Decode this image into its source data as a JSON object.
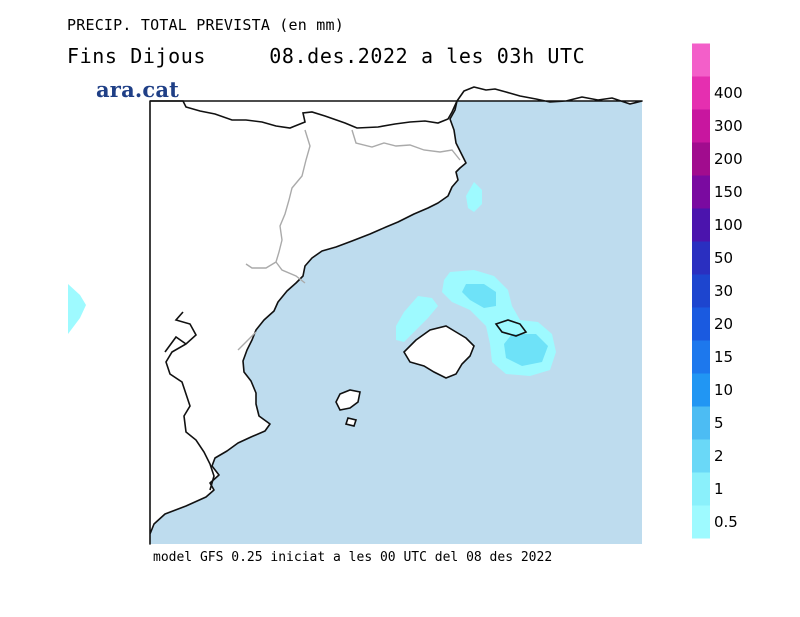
{
  "header": {
    "line1": "PRECIP. TOTAL PREVISTA (en mm)",
    "line2": "Fins Dijous     08.des.2022 a les 03h UTC",
    "brand": "ara.cat"
  },
  "footer": {
    "model_line": "model GFS 0.25 iniciat a les 00 UTC del 08 des 2022"
  },
  "legend": {
    "levels": [
      {
        "label": "0.5",
        "color": "#9efaff"
      },
      {
        "label": "1",
        "color": "#8af0fb"
      },
      {
        "label": "2",
        "color": "#6ad8f7"
      },
      {
        "label": "5",
        "color": "#4cbcf3"
      },
      {
        "label": "10",
        "color": "#2196f3"
      },
      {
        "label": "15",
        "color": "#1d78ed"
      },
      {
        "label": "20",
        "color": "#1a5ae0"
      },
      {
        "label": "30",
        "color": "#1d45cf"
      },
      {
        "label": "50",
        "color": "#2a2fc0"
      },
      {
        "label": "100",
        "color": "#4b14ad"
      },
      {
        "label": "150",
        "color": "#7a0aa0"
      },
      {
        "label": "200",
        "color": "#a10c8e"
      },
      {
        "label": "300",
        "color": "#c8169f"
      },
      {
        "label": "400",
        "color": "#e52fb0"
      },
      {
        "label": "",
        "color": "#f35fc9"
      }
    ]
  },
  "map": {
    "sea_color": "#bedcee",
    "land_color": "#ffffff",
    "coast_color": "#111111",
    "border_color": "#aaaaaa"
  }
}
